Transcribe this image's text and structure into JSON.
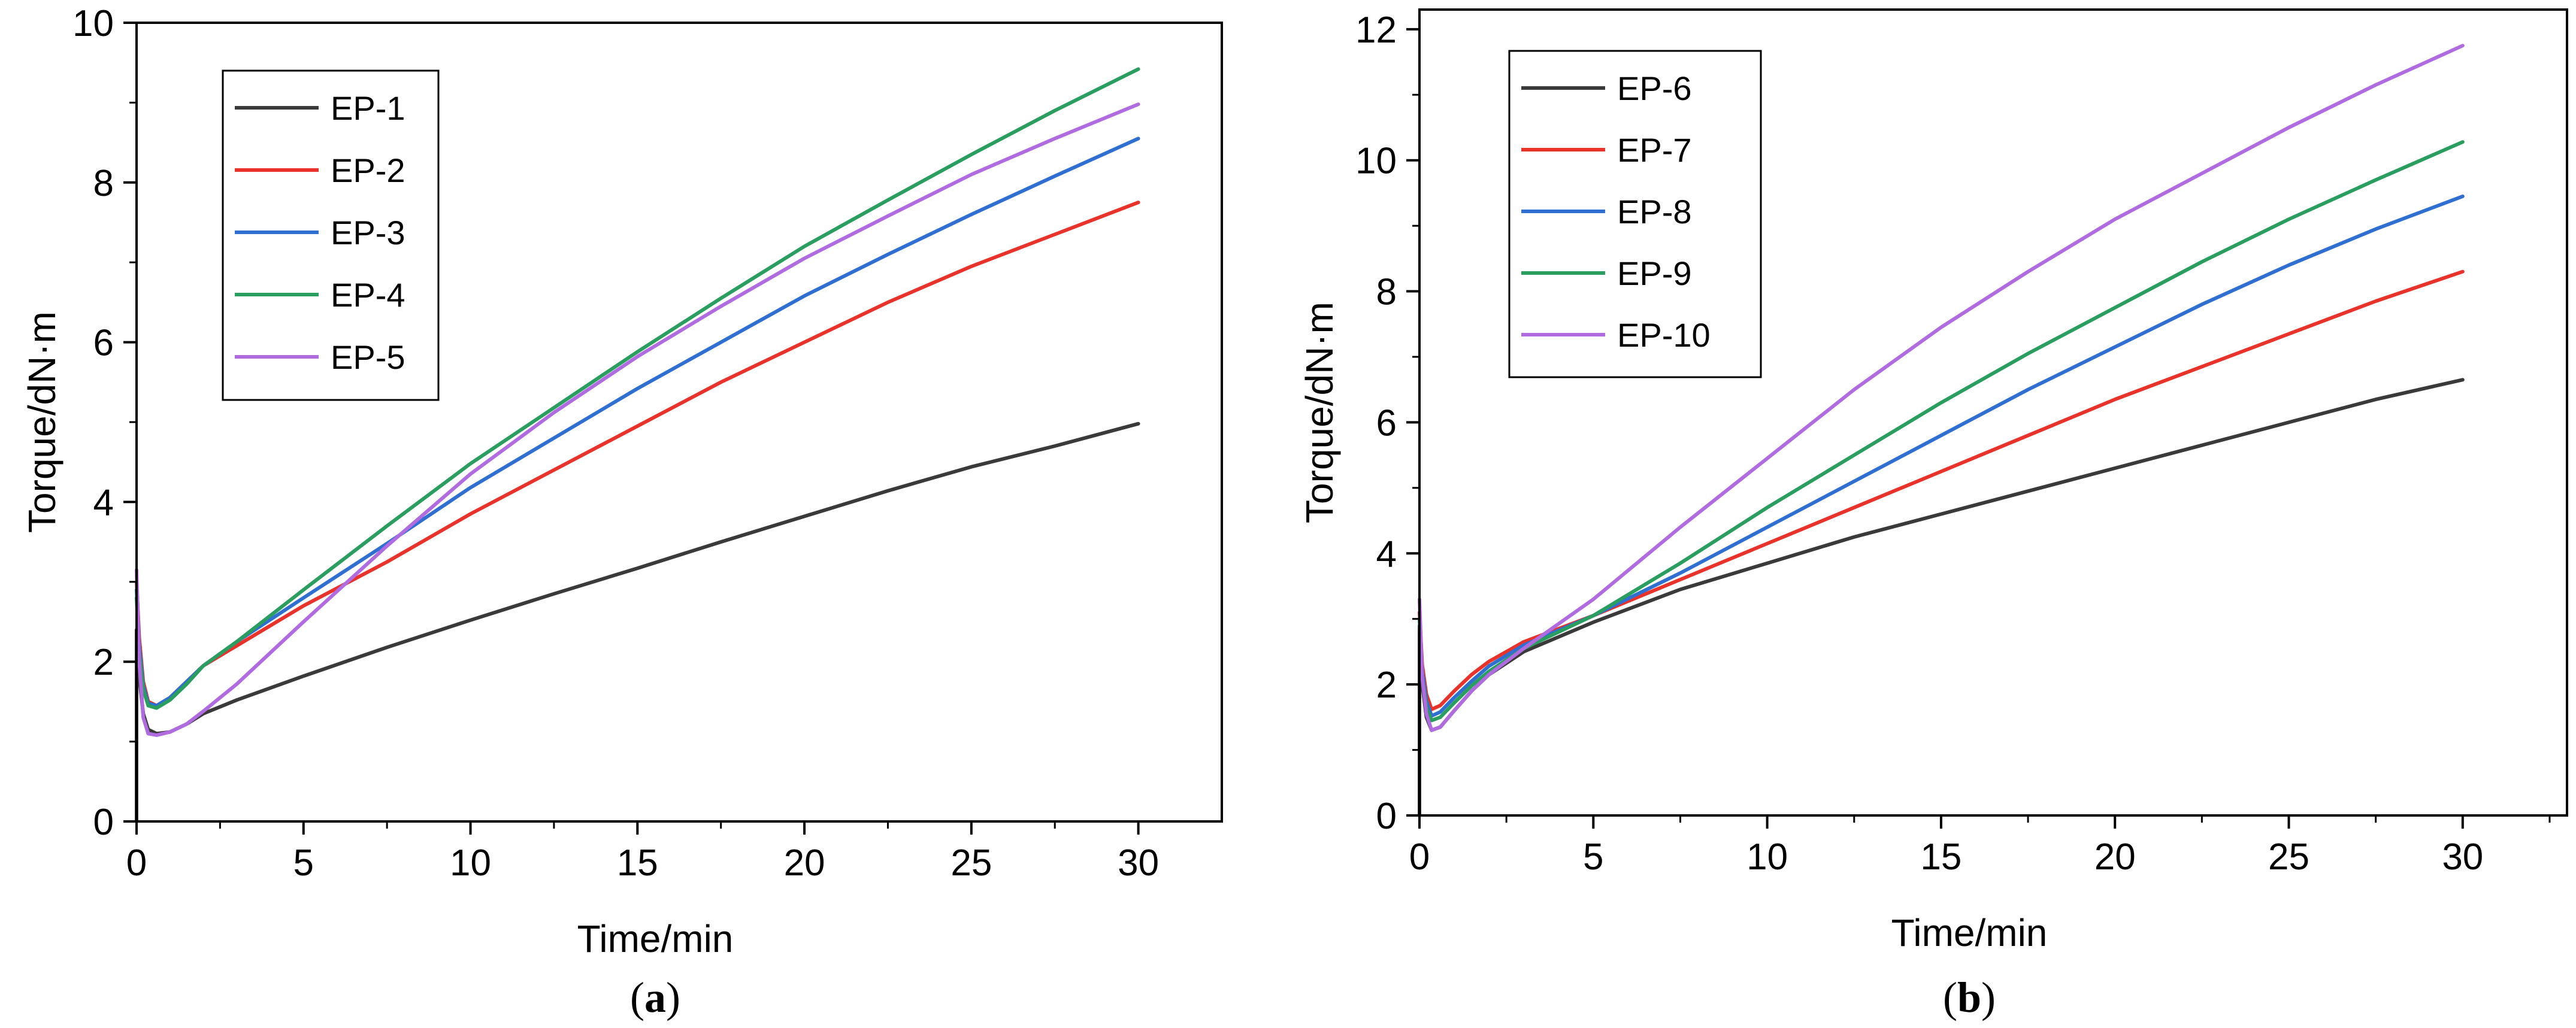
{
  "chart_data": [
    {
      "type": "line",
      "panel_label": "a",
      "xlabel": "Time/min",
      "ylabel": "Torque/dN·m",
      "xlim": [
        0,
        32.5
      ],
      "ylim": [
        0,
        10
      ],
      "xticks": [
        0,
        5,
        10,
        15,
        20,
        25,
        30
      ],
      "yticks": [
        0,
        2,
        4,
        6,
        8,
        10
      ],
      "grid": false,
      "legend_position": "top-left",
      "series": [
        {
          "name": "EP-1",
          "color": "#3a3a3a",
          "x": [
            0,
            0.08,
            0.2,
            0.35,
            0.6,
            1,
            1.5,
            2,
            3,
            5,
            7.5,
            10,
            12.5,
            15,
            17.5,
            20,
            22.5,
            25,
            27.5,
            30
          ],
          "y": [
            2.4,
            1.8,
            1.35,
            1.15,
            1.1,
            1.12,
            1.22,
            1.35,
            1.52,
            1.82,
            2.18,
            2.52,
            2.85,
            3.17,
            3.5,
            3.82,
            4.14,
            4.44,
            4.7,
            4.98
          ]
        },
        {
          "name": "EP-2",
          "color": "#e8322a",
          "x": [
            0,
            0.08,
            0.2,
            0.35,
            0.6,
            1,
            1.5,
            2,
            3,
            5,
            7.5,
            10,
            12.5,
            15,
            17.5,
            20,
            22.5,
            25,
            27.5,
            30
          ],
          "y": [
            3.0,
            2.3,
            1.75,
            1.5,
            1.45,
            1.55,
            1.75,
            1.95,
            2.2,
            2.7,
            3.25,
            3.85,
            4.4,
            4.95,
            5.5,
            6.0,
            6.5,
            6.95,
            7.35,
            7.75
          ]
        },
        {
          "name": "EP-3",
          "color": "#2e6fd1",
          "x": [
            0,
            0.08,
            0.2,
            0.35,
            0.6,
            1,
            1.5,
            2,
            3,
            5,
            7.5,
            10,
            12.5,
            15,
            17.5,
            20,
            22.5,
            25,
            27.5,
            30
          ],
          "y": [
            2.9,
            2.2,
            1.7,
            1.48,
            1.45,
            1.55,
            1.75,
            1.95,
            2.25,
            2.8,
            3.48,
            4.18,
            4.8,
            5.42,
            6.0,
            6.58,
            7.1,
            7.6,
            8.08,
            8.55
          ]
        },
        {
          "name": "EP-4",
          "color": "#2a9e5e",
          "x": [
            0,
            0.08,
            0.2,
            0.35,
            0.6,
            1,
            1.5,
            2,
            3,
            5,
            7.5,
            10,
            12.5,
            15,
            17.5,
            20,
            22.5,
            25,
            27.5,
            30
          ],
          "y": [
            2.8,
            2.1,
            1.65,
            1.45,
            1.42,
            1.52,
            1.72,
            1.95,
            2.25,
            2.9,
            3.7,
            4.48,
            5.18,
            5.88,
            6.55,
            7.2,
            7.78,
            8.35,
            8.9,
            9.42
          ]
        },
        {
          "name": "EP-5",
          "color": "#b06be0",
          "x": [
            0,
            0.08,
            0.2,
            0.35,
            0.6,
            1,
            1.5,
            2,
            3,
            5,
            7.5,
            10,
            12.5,
            15,
            17.5,
            20,
            22.5,
            25,
            27.5,
            30
          ],
          "y": [
            3.15,
            2.0,
            1.3,
            1.1,
            1.08,
            1.12,
            1.22,
            1.38,
            1.72,
            2.5,
            3.45,
            4.35,
            5.12,
            5.82,
            6.45,
            7.05,
            7.58,
            8.1,
            8.55,
            8.98
          ]
        }
      ]
    },
    {
      "type": "line",
      "panel_label": "b",
      "xlabel": "Time/min",
      "ylabel": "Torque/dN·m",
      "xlim": [
        0,
        33
      ],
      "ylim": [
        0,
        12.3
      ],
      "xticks": [
        0,
        5,
        10,
        15,
        20,
        25,
        30
      ],
      "yticks": [
        0,
        2,
        4,
        6,
        8,
        10,
        12
      ],
      "grid": false,
      "legend_position": "top-left",
      "series": [
        {
          "name": "EP-6",
          "color": "#3a3a3a",
          "x": [
            0,
            0.08,
            0.2,
            0.35,
            0.6,
            1,
            1.5,
            2,
            3,
            5,
            7.5,
            10,
            12.5,
            15,
            17.5,
            20,
            22.5,
            25,
            27.5,
            30
          ],
          "y": [
            2.9,
            2.0,
            1.5,
            1.3,
            1.35,
            1.6,
            1.9,
            2.15,
            2.5,
            2.95,
            3.45,
            3.85,
            4.25,
            4.6,
            4.95,
            5.3,
            5.65,
            6.0,
            6.35,
            6.65
          ]
        },
        {
          "name": "EP-7",
          "color": "#e8322a",
          "x": [
            0,
            0.08,
            0.2,
            0.35,
            0.6,
            1,
            1.5,
            2,
            3,
            5,
            7.5,
            10,
            12.5,
            15,
            17.5,
            20,
            22.5,
            25,
            27.5,
            30
          ],
          "y": [
            3.1,
            2.3,
            1.85,
            1.62,
            1.68,
            1.9,
            2.15,
            2.35,
            2.65,
            3.05,
            3.6,
            4.15,
            4.7,
            5.25,
            5.8,
            6.35,
            6.85,
            7.35,
            7.85,
            8.3
          ]
        },
        {
          "name": "EP-8",
          "color": "#2e6fd1",
          "x": [
            0,
            0.08,
            0.2,
            0.35,
            0.6,
            1,
            1.5,
            2,
            3,
            5,
            7.5,
            10,
            12.5,
            15,
            17.5,
            20,
            22.5,
            25,
            27.5,
            30
          ],
          "y": [
            3.0,
            2.2,
            1.75,
            1.52,
            1.58,
            1.8,
            2.05,
            2.28,
            2.6,
            3.05,
            3.7,
            4.4,
            5.1,
            5.8,
            6.5,
            7.15,
            7.8,
            8.4,
            8.95,
            9.45
          ]
        },
        {
          "name": "EP-9",
          "color": "#2a9e5e",
          "x": [
            0,
            0.08,
            0.2,
            0.35,
            0.6,
            1,
            1.5,
            2,
            3,
            5,
            7.5,
            10,
            12.5,
            15,
            17.5,
            20,
            22.5,
            25,
            27.5,
            30
          ],
          "y": [
            3.0,
            2.1,
            1.65,
            1.45,
            1.5,
            1.72,
            1.98,
            2.2,
            2.55,
            3.05,
            3.85,
            4.7,
            5.5,
            6.3,
            7.05,
            7.75,
            8.45,
            9.1,
            9.7,
            10.28
          ]
        },
        {
          "name": "EP-10",
          "color": "#b06be0",
          "x": [
            0,
            0.08,
            0.2,
            0.35,
            0.6,
            1,
            1.5,
            2,
            3,
            5,
            7.5,
            10,
            12.5,
            15,
            17.5,
            20,
            22.5,
            25,
            27.5,
            30
          ],
          "y": [
            3.3,
            2.1,
            1.55,
            1.3,
            1.35,
            1.6,
            1.9,
            2.15,
            2.55,
            3.3,
            4.4,
            5.45,
            6.5,
            7.45,
            8.3,
            9.1,
            9.8,
            10.5,
            11.15,
            11.75
          ]
        }
      ]
    }
  ]
}
